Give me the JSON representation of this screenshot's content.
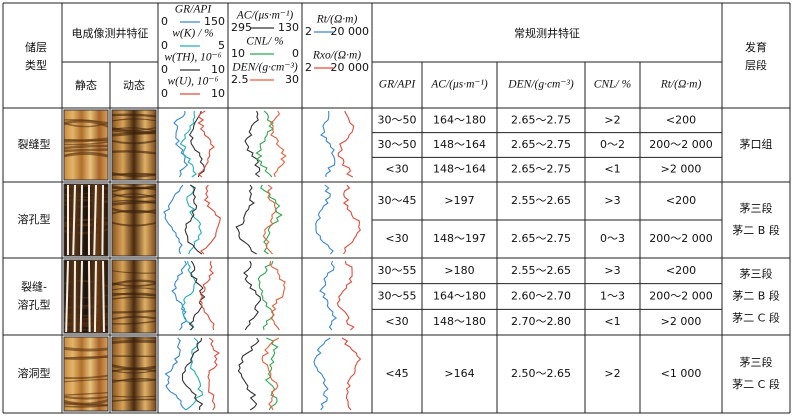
{
  "header": {
    "reservoir_type": [
      "储层",
      "类型"
    ],
    "imaging": "电成像测井特征",
    "static": "静态",
    "dynamic": "动态",
    "conventional": "常规测井特征",
    "interval": [
      "发育",
      "层段"
    ]
  },
  "curve_tracks": [
    {
      "curves": [
        {
          "name": "GR/API",
          "min": "0",
          "max": "150",
          "color": "#3a86d8"
        },
        {
          "name": "w(K) / %",
          "min": "0",
          "max": "5",
          "color": "#22b0b8"
        },
        {
          "name": "w(TH), 10⁻⁶",
          "min": "0",
          "max": "10",
          "color": "#333333"
        },
        {
          "name": "w(U), 10⁻⁶",
          "min": "0",
          "max": "10",
          "color": "#e34a3a"
        }
      ]
    },
    {
      "curves": [
        {
          "name": "AC/(μs·m⁻¹)",
          "min": "295",
          "max": "130",
          "color": "#333333"
        },
        {
          "name": "CNL/ %",
          "min": "10",
          "max": "0",
          "color": "#2fa84f"
        },
        {
          "name": "DEN/(g·cm⁻³)",
          "min": "2.5",
          "max": "30",
          "color": "#e8603c"
        }
      ]
    },
    {
      "curves": [
        {
          "name": "Rt/(Ω·m)",
          "min": "2",
          "max": "20 000",
          "color": "#3a86d8"
        },
        {
          "name": "Rxo/(Ω·m)",
          "min": "2",
          "max": "20 000",
          "color": "#e34a3a"
        }
      ]
    }
  ],
  "columns": [
    "GR/API",
    "AC/(μs·m⁻¹)",
    "DEN/(g·cm⁻³)",
    "CNL/ %",
    "Rt/(Ω·m)"
  ],
  "groups": [
    {
      "type": [
        "裂缝型"
      ],
      "interval": [
        "茅口组"
      ],
      "rows": [
        [
          "30～50",
          "164～180",
          "2.65～2.75",
          ">2",
          "<200"
        ],
        [
          "30～50",
          "148～164",
          "2.65～2.75",
          "0～2",
          "200～2 000"
        ],
        [
          "<30",
          "148～164",
          "2.65～2.75",
          "<1",
          ">2 000"
        ]
      ]
    },
    {
      "type": [
        "溶孔型"
      ],
      "interval": [
        "茅三段",
        "茅二 B 段"
      ],
      "rows": [
        [
          "30～45",
          ">197",
          "2.55～2.65",
          ">3",
          "<200"
        ],
        [
          "<30",
          "148～197",
          "2.65～2.75",
          "0～3",
          "200～2 000"
        ]
      ]
    },
    {
      "type": [
        "裂缝-",
        "溶孔型"
      ],
      "interval": [
        "茅三段",
        "茅二 B 段",
        "茅二 C 段"
      ],
      "rows": [
        [
          "30～55",
          ">180",
          "2.55～2.65",
          ">3",
          "<200"
        ],
        [
          "30～55",
          "164～180",
          "2.60～2.70",
          "1～3",
          "200～2 000"
        ],
        [
          "<30",
          "148～180",
          "2.70～2.80",
          "<1",
          ">2 000"
        ]
      ]
    },
    {
      "type": [
        "溶洞型"
      ],
      "interval": [
        "茅三段",
        "茅二 C 段"
      ],
      "rows": [
        [
          "<45",
          ">164",
          "2.50～2.65",
          ">2",
          "<1 000"
        ]
      ]
    }
  ]
}
